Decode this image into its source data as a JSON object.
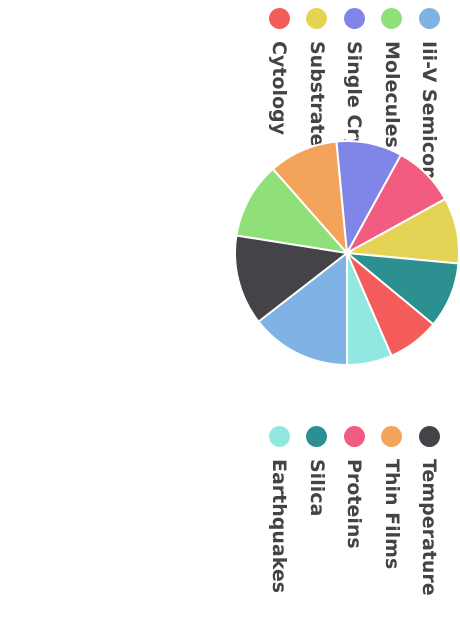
{
  "chart_data": {
    "type": "pie",
    "title": "",
    "start_angle": 0,
    "slices": [
      {
        "label": "Iii-V Semiconductors",
        "value": 14.5,
        "color": "#7fb2e5"
      },
      {
        "label": "Temperature",
        "value": 13.0,
        "color": "#434348"
      },
      {
        "label": "Molecules",
        "value": 11.0,
        "color": "#90e07a"
      },
      {
        "label": "Thin Films",
        "value": 10.0,
        "color": "#f4a45a"
      },
      {
        "label": "Single Crystals",
        "value": 9.5,
        "color": "#8085e8"
      },
      {
        "label": "Proteins",
        "value": 9.0,
        "color": "#f15c80"
      },
      {
        "label": "Substrates",
        "value": 9.5,
        "color": "#e4d354"
      },
      {
        "label": "Silica",
        "value": 9.5,
        "color": "#2b908f"
      },
      {
        "label": "Cytology",
        "value": 7.5,
        "color": "#f45b5b"
      },
      {
        "label": "Earthquakes",
        "value": 6.5,
        "color": "#91e8e1"
      }
    ],
    "legend_left": [
      "Iii-V Semiconductors",
      "Molecules",
      "Single Crystals",
      "Substrates",
      "Cytology"
    ],
    "legend_right": [
      "Temperature",
      "Thin Films",
      "Proteins",
      "Silica",
      "Earthquakes"
    ]
  }
}
